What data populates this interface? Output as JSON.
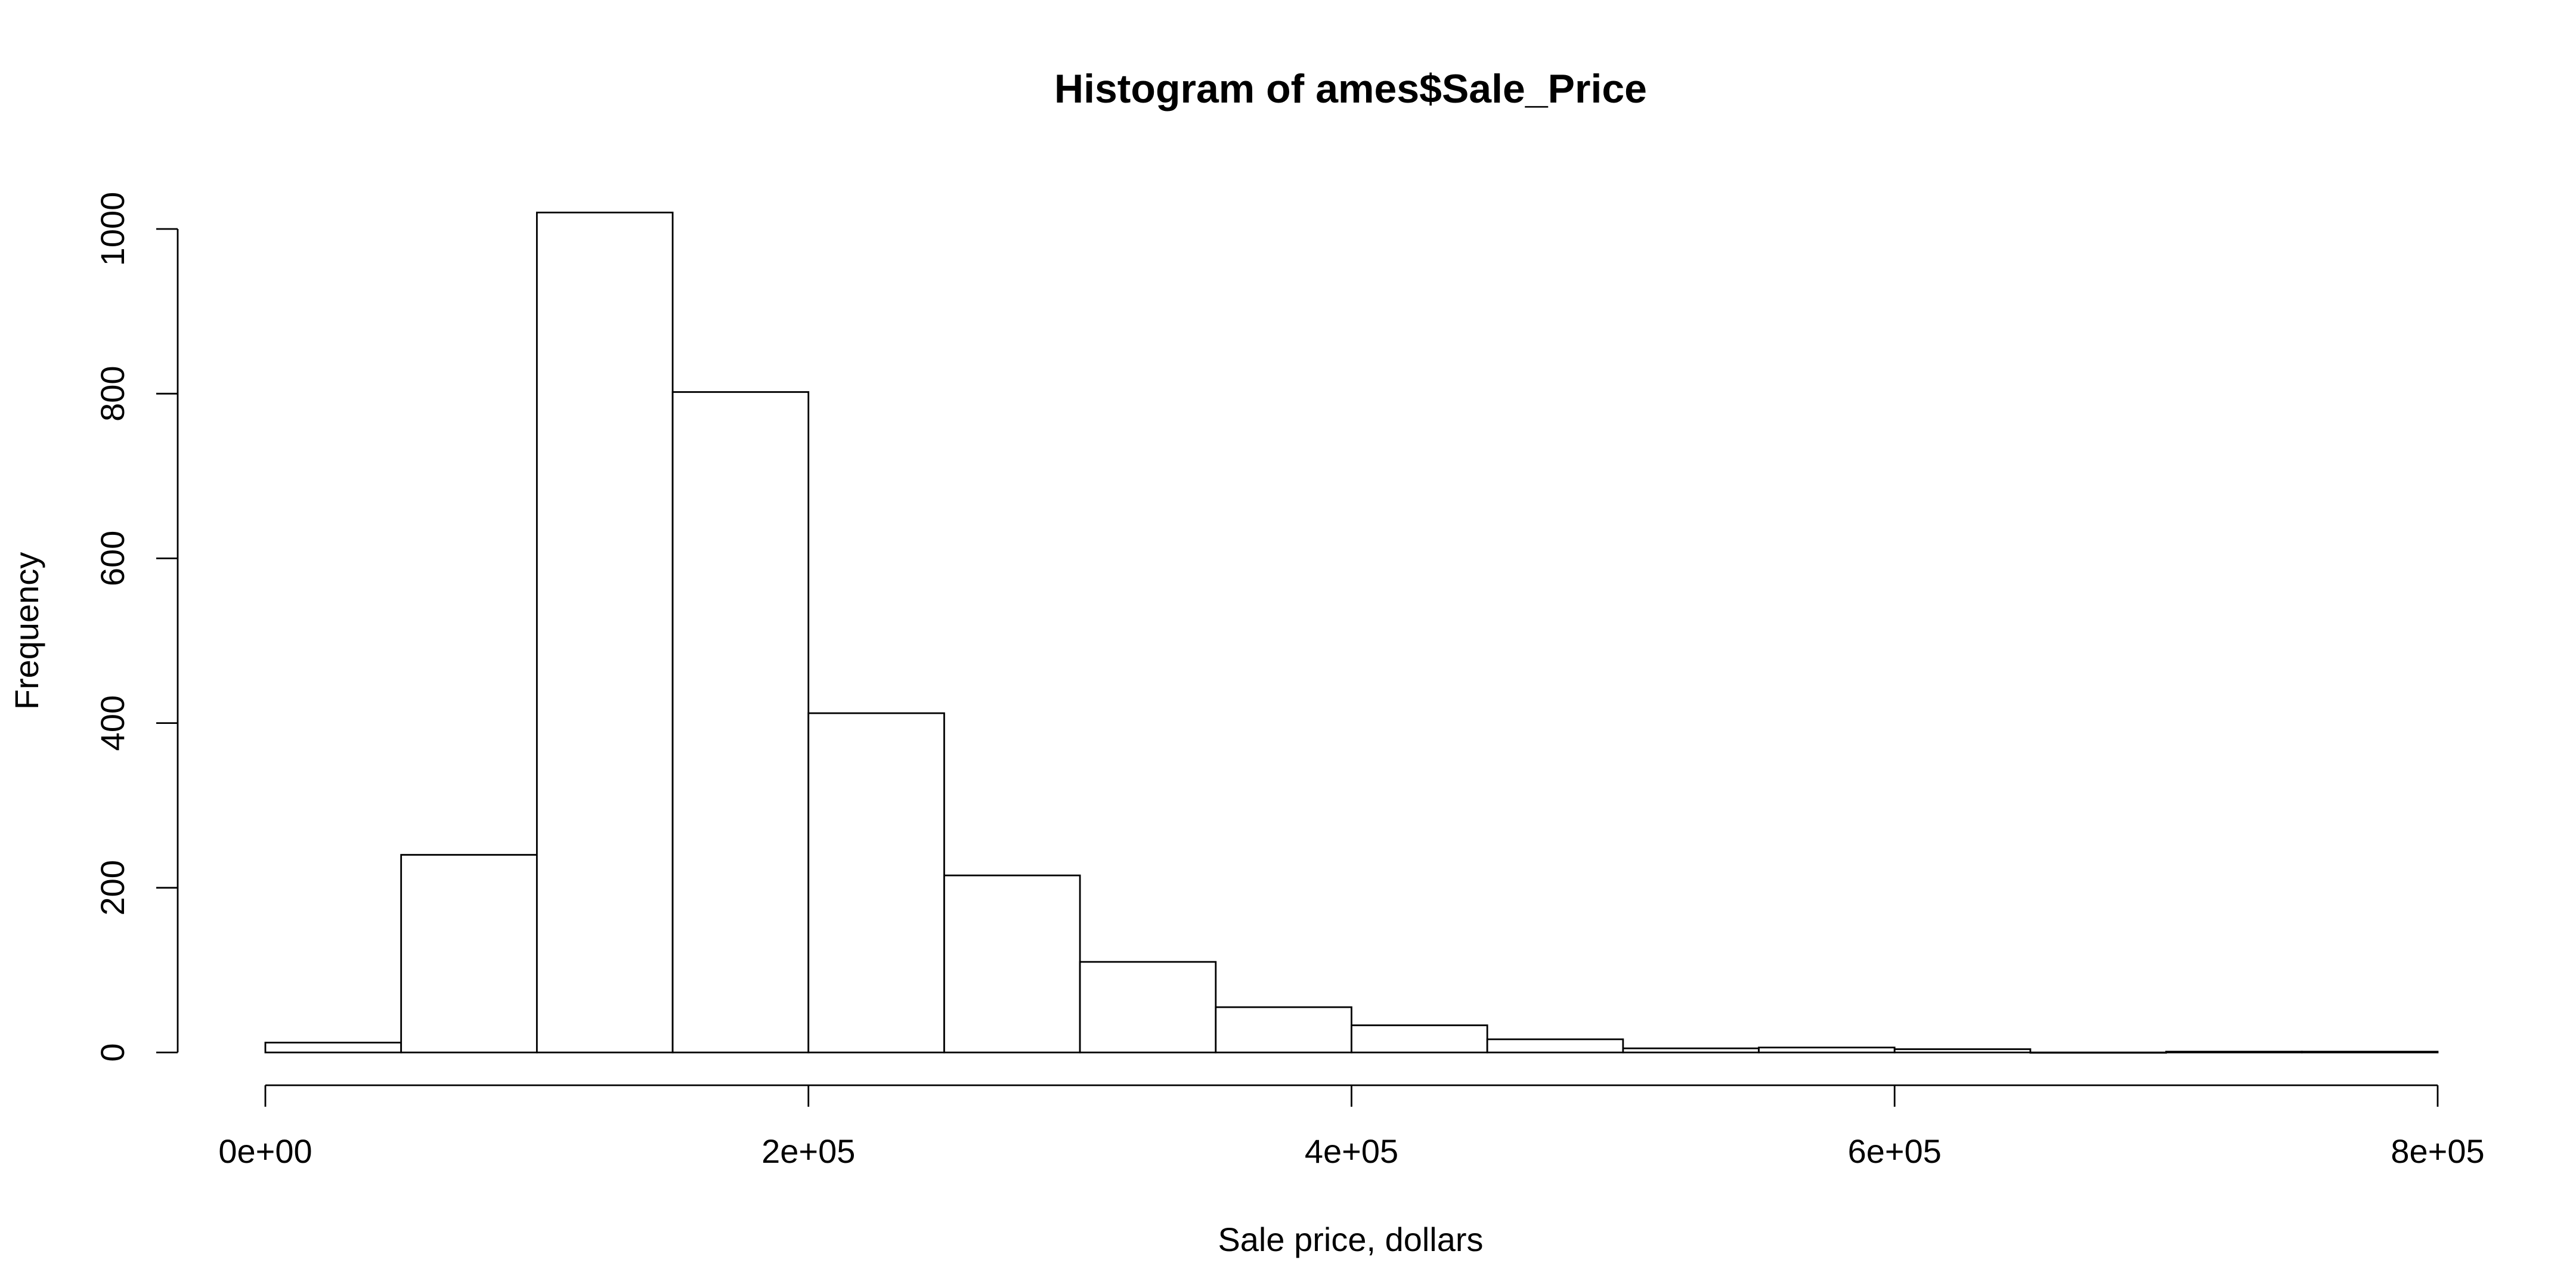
{
  "chart_data": {
    "type": "bar",
    "title": "Histogram of ames$Sale_Price",
    "xlabel": "Sale price, dollars",
    "ylabel": "Frequency",
    "bin_width": 50000,
    "bins": [
      {
        "start": 0,
        "end": 50000,
        "count": 12
      },
      {
        "start": 50000,
        "end": 100000,
        "count": 240
      },
      {
        "start": 100000,
        "end": 150000,
        "count": 1020
      },
      {
        "start": 150000,
        "end": 200000,
        "count": 802
      },
      {
        "start": 200000,
        "end": 250000,
        "count": 412
      },
      {
        "start": 250000,
        "end": 300000,
        "count": 215
      },
      {
        "start": 300000,
        "end": 350000,
        "count": 110
      },
      {
        "start": 350000,
        "end": 400000,
        "count": 55
      },
      {
        "start": 400000,
        "end": 450000,
        "count": 33
      },
      {
        "start": 450000,
        "end": 500000,
        "count": 16
      },
      {
        "start": 500000,
        "end": 550000,
        "count": 5
      },
      {
        "start": 550000,
        "end": 600000,
        "count": 6
      },
      {
        "start": 600000,
        "end": 650000,
        "count": 4
      },
      {
        "start": 650000,
        "end": 700000,
        "count": 0
      },
      {
        "start": 700000,
        "end": 750000,
        "count": 1
      },
      {
        "start": 750000,
        "end": 800000,
        "count": 1
      }
    ],
    "xlim": [
      0,
      800000
    ],
    "ylim": [
      0,
      1020
    ],
    "x_ticks": [
      {
        "value": 0,
        "label": "0e+00"
      },
      {
        "value": 200000,
        "label": "2e+05"
      },
      {
        "value": 400000,
        "label": "4e+05"
      },
      {
        "value": 600000,
        "label": "6e+05"
      },
      {
        "value": 800000,
        "label": "8e+05"
      }
    ],
    "y_ticks": [
      {
        "value": 0,
        "label": "0"
      },
      {
        "value": 200,
        "label": "200"
      },
      {
        "value": 400,
        "label": "400"
      },
      {
        "value": 600,
        "label": "600"
      },
      {
        "value": 800,
        "label": "800"
      },
      {
        "value": 1000,
        "label": "1000"
      }
    ],
    "grid": false,
    "legend": "none",
    "colors": {
      "bar_fill": "#ffffff",
      "bar_stroke": "#000000",
      "text": "#000000",
      "background": "#ffffff"
    }
  }
}
